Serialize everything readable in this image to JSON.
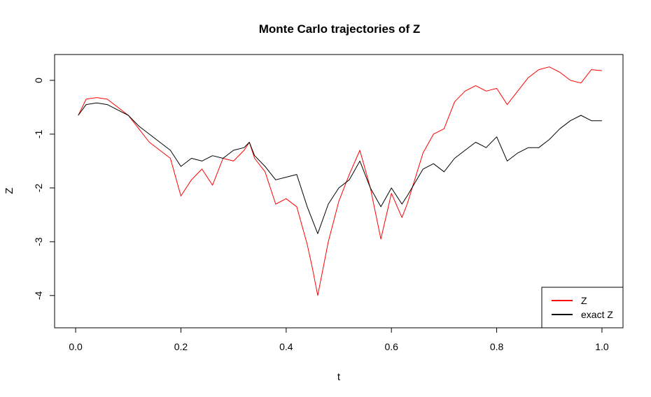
{
  "chart_data": {
    "type": "line",
    "title": "Monte Carlo trajectories of Z",
    "xlabel": "t",
    "ylabel": "Z",
    "xlim": [
      -0.04,
      1.04
    ],
    "ylim": [
      -4.6,
      0.48
    ],
    "xticks": [
      "0.0",
      "0.2",
      "0.4",
      "0.6",
      "0.8",
      "1.0"
    ],
    "xtick_values": [
      0,
      0.2,
      0.4,
      0.6,
      0.8,
      1.0
    ],
    "yticks": [
      "0",
      "-1",
      "-2",
      "-3",
      "-4"
    ],
    "ytick_values": [
      0,
      -1,
      -2,
      -3,
      -4
    ],
    "grid": false,
    "legend_position": "bottom-right",
    "series": [
      {
        "name": "Z",
        "color": "#ff0000",
        "x": [
          0.005,
          0.02,
          0.04,
          0.06,
          0.08,
          0.1,
          0.12,
          0.14,
          0.16,
          0.18,
          0.2,
          0.22,
          0.24,
          0.26,
          0.28,
          0.3,
          0.32,
          0.33,
          0.34,
          0.36,
          0.38,
          0.4,
          0.42,
          0.44,
          0.45,
          0.46,
          0.48,
          0.5,
          0.52,
          0.54,
          0.56,
          0.58,
          0.6,
          0.62,
          0.63,
          0.66,
          0.68,
          0.7,
          0.72,
          0.74,
          0.76,
          0.78,
          0.8,
          0.82,
          0.84,
          0.86,
          0.88,
          0.9,
          0.92,
          0.94,
          0.96,
          0.98,
          1.0
        ],
        "y": [
          -0.65,
          -0.35,
          -0.32,
          -0.35,
          -0.5,
          -0.65,
          -0.9,
          -1.15,
          -1.3,
          -1.45,
          -2.15,
          -1.85,
          -1.65,
          -1.95,
          -1.45,
          -1.5,
          -1.3,
          -1.15,
          -1.45,
          -1.7,
          -2.3,
          -2.2,
          -2.35,
          -3.05,
          -3.5,
          -4.0,
          -3.0,
          -2.25,
          -1.75,
          -1.3,
          -2.0,
          -2.95,
          -2.1,
          -2.55,
          -2.3,
          -1.35,
          -1.0,
          -0.9,
          -0.4,
          -0.2,
          -0.1,
          -0.2,
          -0.15,
          -0.45,
          -0.2,
          0.05,
          0.2,
          0.25,
          0.15,
          0.0,
          -0.05,
          0.2,
          0.18
        ]
      },
      {
        "name": "exact Z",
        "color": "#000000",
        "x": [
          0.005,
          0.02,
          0.04,
          0.06,
          0.08,
          0.1,
          0.12,
          0.14,
          0.16,
          0.18,
          0.2,
          0.22,
          0.24,
          0.26,
          0.28,
          0.3,
          0.32,
          0.33,
          0.34,
          0.36,
          0.38,
          0.4,
          0.42,
          0.44,
          0.45,
          0.46,
          0.48,
          0.5,
          0.52,
          0.54,
          0.56,
          0.58,
          0.6,
          0.62,
          0.63,
          0.66,
          0.68,
          0.7,
          0.72,
          0.74,
          0.76,
          0.78,
          0.8,
          0.82,
          0.84,
          0.86,
          0.88,
          0.9,
          0.92,
          0.94,
          0.96,
          0.98,
          1.0
        ],
        "y": [
          -0.65,
          -0.45,
          -0.42,
          -0.45,
          -0.55,
          -0.65,
          -0.85,
          -1.0,
          -1.15,
          -1.3,
          -1.6,
          -1.45,
          -1.5,
          -1.4,
          -1.45,
          -1.3,
          -1.25,
          -1.15,
          -1.4,
          -1.6,
          -1.85,
          -1.8,
          -1.75,
          -2.35,
          -2.6,
          -2.85,
          -2.3,
          -2.0,
          -1.85,
          -1.5,
          -2.0,
          -2.35,
          -2.0,
          -2.3,
          -2.15,
          -1.65,
          -1.55,
          -1.7,
          -1.45,
          -1.3,
          -1.15,
          -1.25,
          -1.05,
          -1.5,
          -1.35,
          -1.25,
          -1.25,
          -1.1,
          -0.9,
          -0.75,
          -0.65,
          -0.75,
          -0.75
        ]
      }
    ]
  }
}
